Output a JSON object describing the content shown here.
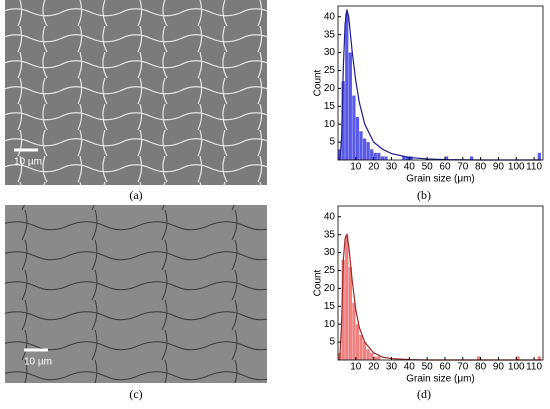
{
  "chart_data": [
    {
      "type": "histogram",
      "x_label": "Grain size (μm)",
      "y_label": "Count",
      "bins": [
        0,
        2,
        4,
        6,
        8,
        10,
        12,
        14,
        16,
        18,
        20,
        22,
        24,
        26,
        28,
        30,
        32,
        34,
        36,
        38,
        40,
        42,
        44,
        46,
        48,
        50,
        52,
        54,
        56,
        58,
        60,
        62,
        64,
        66,
        68,
        70,
        72,
        74,
        76,
        78,
        80,
        82,
        84,
        86,
        88,
        90,
        92,
        94,
        96,
        98,
        100,
        102,
        104,
        106,
        108,
        110,
        112,
        114
      ],
      "counts": [
        3,
        22,
        41,
        30,
        18,
        12,
        8,
        6,
        5,
        3,
        2,
        2,
        1,
        1,
        0,
        0,
        0,
        0,
        1,
        1,
        1,
        0,
        0,
        0,
        0,
        0,
        0,
        0,
        0,
        0,
        1,
        0,
        0,
        0,
        0,
        0,
        0,
        1,
        0,
        0,
        0,
        0,
        0,
        0,
        0,
        0,
        0,
        0,
        0,
        0,
        0,
        0,
        0,
        0,
        0,
        0,
        2
      ],
      "color": "#5a5ae8",
      "fit": {
        "x": [
          1,
          2,
          3,
          4,
          5,
          6,
          7,
          8,
          10,
          12,
          15,
          20,
          25,
          30,
          40,
          50,
          60,
          80,
          100,
          114
        ],
        "values": [
          0,
          6,
          26,
          38,
          42,
          40,
          35,
          30,
          22,
          16,
          10,
          5,
          3,
          1.8,
          0.7,
          0.3,
          0.1,
          0,
          0,
          0
        ],
        "color": "#1c1c8c"
      },
      "xlim": [
        0,
        115
      ],
      "ylim": [
        0,
        43
      ],
      "xticks": [
        10,
        20,
        30,
        40,
        50,
        60,
        70,
        80,
        90,
        100,
        110
      ],
      "yticks": [
        5,
        10,
        15,
        20,
        25,
        30,
        35,
        40
      ]
    },
    {
      "type": "histogram",
      "x_label": "Grain size (μm)",
      "y_label": "Count",
      "bins": [
        0,
        2,
        4,
        6,
        8,
        10,
        12,
        14,
        16,
        18,
        20,
        22,
        24,
        26,
        28,
        30,
        32,
        34,
        36,
        38,
        40,
        42,
        44,
        46,
        48,
        50,
        52,
        54,
        56,
        58,
        60,
        62,
        64,
        66,
        68,
        70,
        72,
        74,
        76,
        78,
        80,
        82,
        84,
        86,
        88,
        90,
        92,
        94,
        96,
        98,
        100,
        102,
        104,
        106,
        108,
        110,
        112,
        114
      ],
      "counts": [
        2,
        28,
        35,
        26,
        16,
        10,
        7,
        5,
        3,
        2,
        1,
        1,
        0,
        0,
        0,
        0,
        0,
        0,
        0,
        0,
        0,
        0,
        0,
        0,
        0,
        0,
        0,
        0,
        0,
        0,
        0,
        0,
        0,
        0,
        0,
        0,
        0,
        0,
        0,
        1,
        0,
        0,
        0,
        0,
        0,
        0,
        0,
        0,
        0,
        0,
        1,
        0,
        0,
        0,
        0,
        0,
        1
      ],
      "color": "#ee8080",
      "fit": {
        "x": [
          1,
          2,
          3,
          4,
          5,
          6,
          7,
          8,
          10,
          12,
          15,
          20,
          25,
          30,
          40,
          50,
          60,
          80,
          100,
          114
        ],
        "values": [
          0,
          10,
          28,
          34,
          35,
          32,
          27,
          22,
          14,
          9,
          5,
          2,
          0.8,
          0.4,
          0.1,
          0,
          0,
          0,
          0,
          0
        ],
        "color": "#9c2a2a"
      },
      "xlim": [
        0,
        115
      ],
      "ylim": [
        0,
        43
      ],
      "xticks": [
        10,
        20,
        30,
        40,
        50,
        60,
        70,
        80,
        90,
        100,
        110
      ],
      "yticks": [
        5,
        10,
        15,
        20,
        25,
        30,
        35,
        40
      ]
    }
  ],
  "panels": {
    "a": {
      "label": "(a)",
      "scale_bar": "10 µm"
    },
    "b": {
      "label": "(b)"
    },
    "c": {
      "label": "(c)",
      "scale_bar": "10 µm"
    },
    "d": {
      "label": "(d)"
    }
  }
}
